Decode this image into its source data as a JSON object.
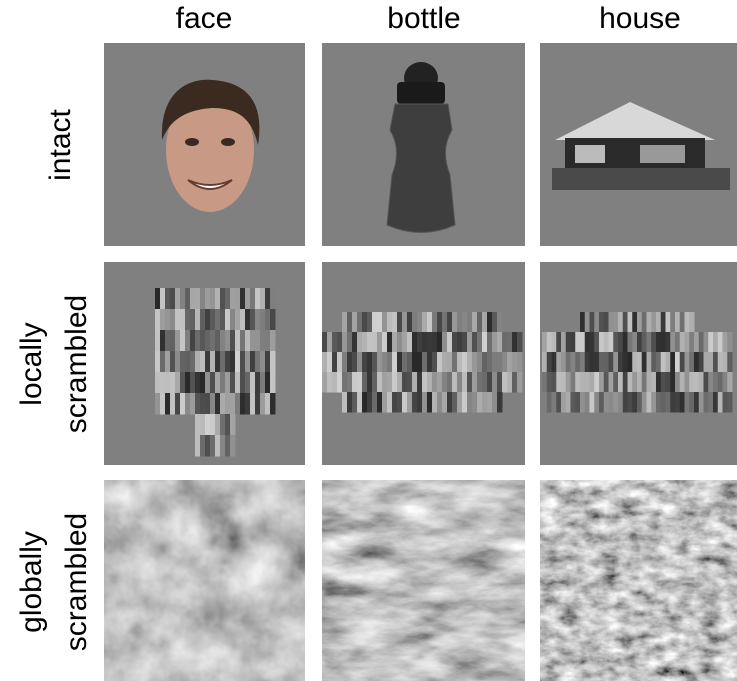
{
  "columns": [
    "face",
    "bottle",
    "house"
  ],
  "rows": [
    [
      "intact"
    ],
    [
      "locally",
      "scrambled"
    ],
    [
      "globally",
      "scrambled"
    ]
  ]
}
